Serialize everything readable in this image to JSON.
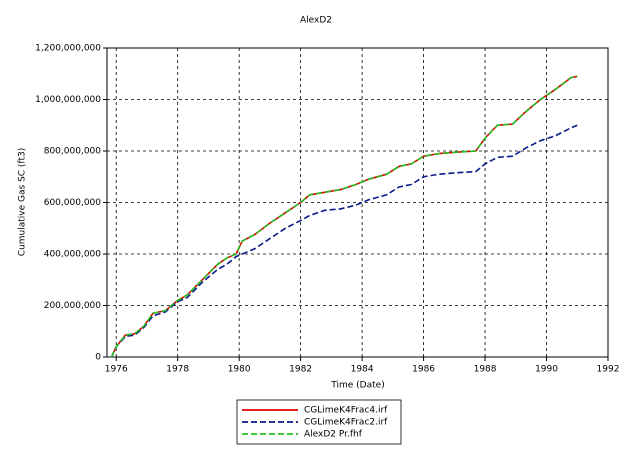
{
  "chart_data": {
    "type": "line",
    "title": "AlexD2",
    "xlabel": "Time (Date)",
    "ylabel": "Cumulative Gas SC (ft3)",
    "x": [
      1975.85,
      1976.0,
      1976.3,
      1976.6,
      1976.9,
      1977.2,
      1977.6,
      1978.0,
      1978.3,
      1978.8,
      1979.3,
      1979.6,
      1979.9,
      1980.1,
      1980.5,
      1981.0,
      1981.5,
      1982.0,
      1982.3,
      1982.8,
      1983.3,
      1983.8,
      1984.2,
      1984.8,
      1985.2,
      1985.6,
      1986.0,
      1986.5,
      1987.0,
      1987.7,
      1988.0,
      1988.4,
      1988.9,
      1989.3,
      1989.8,
      1990.3,
      1990.8,
      1991.0
    ],
    "series": [
      {
        "name": "CGLimeK4Frac4.irf",
        "color": "#e00000",
        "style": "solid",
        "values": [
          0,
          40000000,
          85000000,
          90000000,
          120000000,
          170000000,
          180000000,
          220000000,
          240000000,
          300000000,
          360000000,
          385000000,
          400000000,
          450000000,
          475000000,
          520000000,
          560000000,
          600000000,
          630000000,
          640000000,
          650000000,
          670000000,
          690000000,
          710000000,
          740000000,
          750000000,
          780000000,
          790000000,
          795000000,
          800000000,
          850000000,
          900000000,
          905000000,
          950000000,
          1000000000,
          1040000000,
          1085000000,
          1090000000
        ]
      },
      {
        "name": "CGLimeK4Frac2.irf",
        "color": "#0a1a8c",
        "style": "dashed",
        "values": [
          0,
          40000000,
          80000000,
          85000000,
          115000000,
          160000000,
          175000000,
          215000000,
          230000000,
          290000000,
          340000000,
          360000000,
          390000000,
          400000000,
          420000000,
          460000000,
          500000000,
          530000000,
          550000000,
          570000000,
          575000000,
          590000000,
          610000000,
          630000000,
          660000000,
          670000000,
          700000000,
          710000000,
          715000000,
          720000000,
          750000000,
          775000000,
          780000000,
          810000000,
          840000000,
          860000000,
          890000000,
          900000000
        ]
      },
      {
        "name": "AlexD2 Pr.fhf",
        "color": "#22c022",
        "style": "dashed",
        "values": [
          0,
          40000000,
          85000000,
          90000000,
          120000000,
          170000000,
          180000000,
          220000000,
          240000000,
          300000000,
          360000000,
          385000000,
          400000000,
          450000000,
          475000000,
          520000000,
          560000000,
          600000000,
          630000000,
          640000000,
          650000000,
          670000000,
          690000000,
          710000000,
          740000000,
          750000000,
          780000000,
          790000000,
          795000000,
          800000000,
          850000000,
          900000000,
          905000000,
          950000000,
          1000000000,
          1040000000,
          1085000000,
          1090000000
        ]
      }
    ],
    "xlim": [
      1975.7,
      1992
    ],
    "xticks": [
      1976,
      1978,
      1980,
      1982,
      1984,
      1986,
      1988,
      1990,
      1992
    ],
    "ylim": [
      0,
      1200000000
    ],
    "yticks": [
      0,
      {
        "value": 200000000,
        "label": "200,000,000"
      },
      {
        "value": 400000000,
        "label": "400,000,000"
      },
      {
        "value": 600000000,
        "label": "600,000,000"
      },
      {
        "value": 800000000,
        "label": "800,000,000"
      },
      {
        "value": 1000000000,
        "label": "1,000,000,000"
      },
      {
        "value": 1200000000,
        "label": "1,200,000,000"
      }
    ],
    "grid": true
  }
}
